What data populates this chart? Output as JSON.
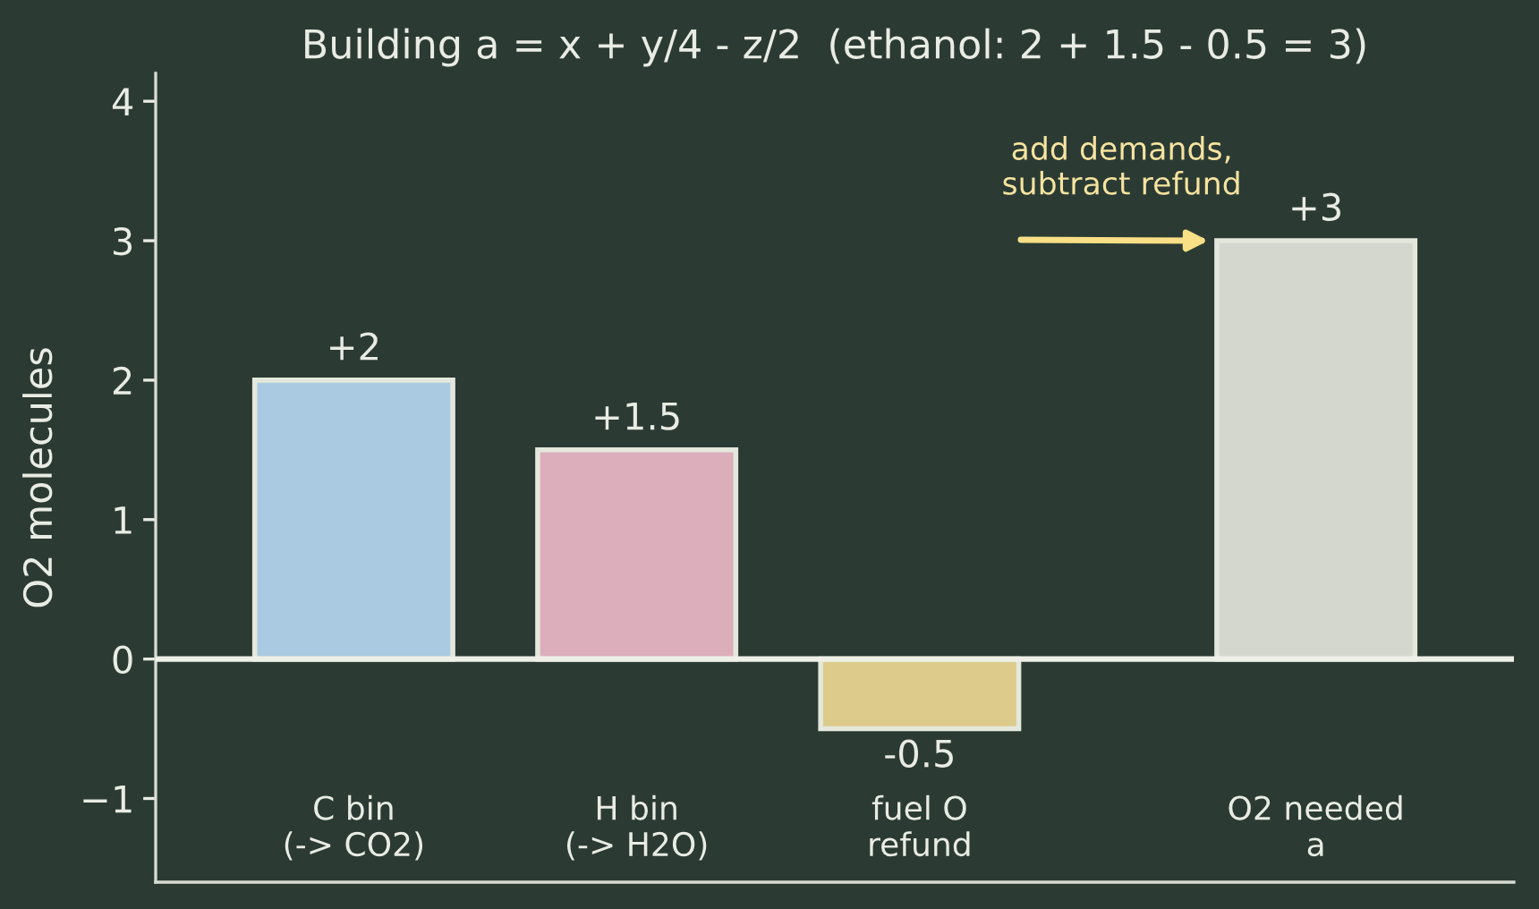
{
  "chart_data": {
    "type": "bar",
    "title": "Building a = x + y/4 - z/2  (ethanol: 2 + 1.5 - 0.5 = 3)",
    "ylabel": "O2 molecules",
    "categories": [
      "C bin\n(-> CO2)",
      "H bin\n(-> H2O)",
      "fuel O\nrefund",
      "O2 needed\na"
    ],
    "values": [
      2,
      1.5,
      -0.5,
      3
    ],
    "colors": [
      "#aacae1",
      "#dcaebc",
      "#dccb8b",
      "#d3d7ce"
    ],
    "value_labels": [
      "+2",
      "+1.5",
      "-0.5",
      "+3"
    ],
    "ylim": [
      -1.6,
      4.2
    ],
    "yticks": [
      {
        "value": -1,
        "label": "−1"
      },
      0,
      1,
      2,
      3,
      4
    ],
    "ref_lines": [
      {
        "axis": "y",
        "value": 0,
        "color": "#eeefe6"
      }
    ],
    "annotations": [
      {
        "text": "add demands,\nsubtract refund",
        "x": "O2 needed\na",
        "y": 3
      }
    ],
    "grid": false
  }
}
